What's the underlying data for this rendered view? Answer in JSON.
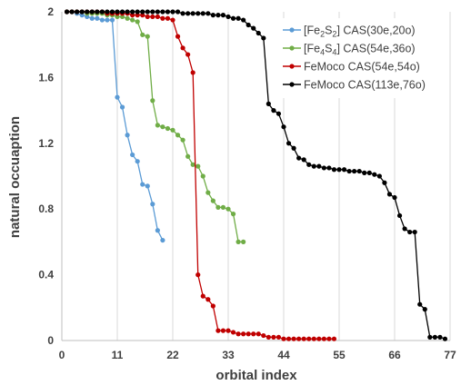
{
  "chart_data": {
    "type": "line",
    "xlabel": "orbital index",
    "ylabel": "natural occuaption",
    "xlim": [
      0,
      77
    ],
    "ylim": [
      0,
      2
    ],
    "xticks": [
      0,
      11,
      22,
      33,
      44,
      55,
      66,
      77
    ],
    "yticks": [
      0,
      0.4,
      0.8,
      1.2,
      1.6,
      2
    ],
    "xtick_labels": [
      "0",
      "11",
      "22",
      "33",
      "44",
      "55",
      "66",
      "77"
    ],
    "ytick_labels": [
      "0",
      "0.4",
      "0.8",
      "1.2",
      "1.6",
      "2"
    ],
    "grid": "vertical",
    "legend_position": "top-right",
    "series": [
      {
        "name": "[Fe2S2] CAS(30e,20o)",
        "legend": [
          {
            "t": "[Fe"
          },
          {
            "t": "2",
            "sub": true
          },
          {
            "t": "S"
          },
          {
            "t": "2",
            "sub": true
          },
          {
            "t": "] CAS(30e,20o)"
          }
        ],
        "color": "#5B9BD5",
        "x": [
          1,
          2,
          3,
          4,
          5,
          6,
          7,
          8,
          9,
          10,
          11,
          12,
          13,
          14,
          15,
          16,
          17,
          18,
          19,
          20
        ],
        "y": [
          2.0,
          2.0,
          1.99,
          1.98,
          1.97,
          1.96,
          1.96,
          1.95,
          1.95,
          1.95,
          1.48,
          1.42,
          1.25,
          1.13,
          1.09,
          0.95,
          0.94,
          0.83,
          0.67,
          0.61
        ]
      },
      {
        "name": "[Fe4S4] CAS(54e,36o)",
        "legend": [
          {
            "t": "[Fe"
          },
          {
            "t": "4",
            "sub": true
          },
          {
            "t": "S"
          },
          {
            "t": "4",
            "sub": true
          },
          {
            "t": "]  CAS(54e,36o)"
          }
        ],
        "color": "#70AD47",
        "x": [
          1,
          2,
          3,
          4,
          5,
          6,
          7,
          8,
          9,
          10,
          11,
          12,
          13,
          14,
          15,
          16,
          17,
          18,
          19,
          20,
          21,
          22,
          23,
          24,
          25,
          26,
          27,
          28,
          29,
          30,
          31,
          32,
          33,
          34,
          35,
          36
        ],
        "y": [
          2.0,
          2.0,
          2.0,
          2.0,
          1.99,
          1.99,
          1.99,
          1.99,
          1.98,
          1.98,
          1.97,
          1.97,
          1.96,
          1.95,
          1.94,
          1.86,
          1.85,
          1.46,
          1.31,
          1.3,
          1.29,
          1.28,
          1.25,
          1.22,
          1.12,
          1.07,
          1.06,
          1.0,
          0.9,
          0.85,
          0.81,
          0.81,
          0.8,
          0.77,
          0.6,
          0.6
        ]
      },
      {
        "name": "FeMoco CAS(54e,54o)",
        "color": "#C00000",
        "x": [
          1,
          2,
          3,
          4,
          5,
          6,
          7,
          8,
          9,
          10,
          11,
          12,
          13,
          14,
          15,
          16,
          17,
          18,
          19,
          20,
          21,
          22,
          23,
          24,
          25,
          26,
          27,
          28,
          29,
          30,
          31,
          32,
          33,
          34,
          35,
          36,
          37,
          38,
          39,
          40,
          41,
          42,
          43,
          44,
          45,
          46,
          47,
          48,
          49,
          50,
          51,
          52,
          53,
          54
        ],
        "y": [
          2.0,
          2.0,
          2.0,
          2.0,
          2.0,
          2.0,
          2.0,
          2.0,
          1.99,
          1.99,
          1.99,
          1.99,
          1.99,
          1.98,
          1.98,
          1.98,
          1.97,
          1.97,
          1.97,
          1.96,
          1.96,
          1.95,
          1.85,
          1.78,
          1.74,
          1.63,
          0.4,
          0.27,
          0.25,
          0.21,
          0.06,
          0.06,
          0.06,
          0.05,
          0.04,
          0.04,
          0.04,
          0.04,
          0.04,
          0.03,
          0.02,
          0.02,
          0.02,
          0.01,
          0.01,
          0.01,
          0.01,
          0.01,
          0.01,
          0.01,
          0.01,
          0.01,
          0.01,
          0.01
        ]
      },
      {
        "name": "FeMoco CAS(113e,76o)",
        "color": "#000000",
        "x": [
          1,
          2,
          3,
          4,
          5,
          6,
          7,
          8,
          9,
          10,
          11,
          12,
          13,
          14,
          15,
          16,
          17,
          18,
          19,
          20,
          21,
          22,
          23,
          24,
          25,
          26,
          27,
          28,
          29,
          30,
          31,
          32,
          33,
          34,
          35,
          36,
          37,
          38,
          39,
          40,
          41,
          42,
          43,
          44,
          45,
          46,
          47,
          48,
          49,
          50,
          51,
          52,
          53,
          54,
          55,
          56,
          57,
          58,
          59,
          60,
          61,
          62,
          63,
          64,
          65,
          66,
          67,
          68,
          69,
          70,
          71,
          72,
          73,
          74,
          75,
          76
        ],
        "y": [
          2.0,
          2.0,
          2.0,
          2.0,
          2.0,
          2.0,
          2.0,
          2.0,
          2.0,
          2.0,
          2.0,
          2.0,
          2.0,
          2.0,
          2.0,
          2.0,
          2.0,
          2.0,
          2.0,
          2.0,
          2.0,
          2.0,
          2.0,
          1.99,
          1.99,
          1.99,
          1.99,
          1.99,
          1.99,
          1.98,
          1.98,
          1.98,
          1.97,
          1.96,
          1.96,
          1.95,
          1.92,
          1.9,
          1.87,
          1.84,
          1.44,
          1.4,
          1.38,
          1.3,
          1.2,
          1.17,
          1.11,
          1.1,
          1.07,
          1.06,
          1.06,
          1.05,
          1.05,
          1.04,
          1.04,
          1.04,
          1.03,
          1.03,
          1.03,
          1.02,
          1.02,
          1.01,
          1.0,
          0.96,
          0.89,
          0.87,
          0.76,
          0.68,
          0.66,
          0.66,
          0.22,
          0.19,
          0.02,
          0.02,
          0.02,
          0.01
        ]
      }
    ]
  }
}
